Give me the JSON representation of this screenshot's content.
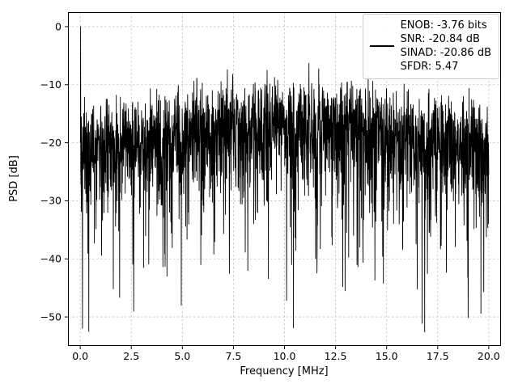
{
  "chart_data": {
    "type": "line",
    "title": "",
    "xlabel": "Frequency [MHz]",
    "ylabel": "PSD [dB]",
    "xlim": [
      -0.6,
      20.6
    ],
    "ylim": [
      -55,
      2.5
    ],
    "xticks": {
      "values": [
        0,
        2.5,
        5,
        7.5,
        10,
        12.5,
        15,
        17.5,
        20
      ],
      "labels": [
        "0.0",
        "2.5",
        "5.0",
        "7.5",
        "10.0",
        "12.5",
        "15.0",
        "17.5",
        "20.0"
      ]
    },
    "yticks": {
      "values": [
        0,
        -10,
        -20,
        -30,
        -40,
        -50
      ],
      "labels": [
        "0",
        "−10",
        "−20",
        "−30",
        "−40",
        "−50"
      ]
    },
    "grid": true,
    "grid_color": "#c3c3c3",
    "background": "#ffffff",
    "legend": {
      "position": "upper right",
      "line_color": "#000000",
      "entries": [
        "ENOB: -3.76 bits",
        "SNR: -20.84 dB",
        "SINAD: -20.86 dB",
        "SFDR: 5.47"
      ]
    },
    "stats": {
      "enob_bits": -3.76,
      "snr_db": -20.84,
      "sinad_db": -20.86,
      "sfdr": 5.47
    },
    "series": [
      {
        "name": "PSD",
        "color": "#000000",
        "x_range": [
          0,
          20
        ],
        "points": 2200,
        "noise_model": {
          "kind": "exponential-psd-db",
          "seed": 20840,
          "base_db": -20,
          "arch_db": 4.5,
          "spike_prob": 0.05,
          "spike_extra_min_db": 3,
          "spike_extra_max_db": 22,
          "floor_db": -53
        },
        "peaks": [
          {
            "x": 0.02,
            "y": 0
          },
          {
            "x": 11.2,
            "y": -6.3
          }
        ],
        "dips": [
          {
            "x": 0.42,
            "y": -52.5
          },
          {
            "x": 2.62,
            "y": -49.0
          },
          {
            "x": 3.1,
            "y": -41.5
          },
          {
            "x": 4.25,
            "y": -43.0
          },
          {
            "x": 4.95,
            "y": -48.0
          },
          {
            "x": 5.9,
            "y": -41.0
          },
          {
            "x": 7.3,
            "y": -42.5
          },
          {
            "x": 8.2,
            "y": -42.0
          },
          {
            "x": 10.35,
            "y": -41.0
          },
          {
            "x": 13.55,
            "y": -41.0
          },
          {
            "x": 16.5,
            "y": -45.2
          },
          {
            "x": 19.0,
            "y": -41.5
          }
        ]
      }
    ]
  }
}
